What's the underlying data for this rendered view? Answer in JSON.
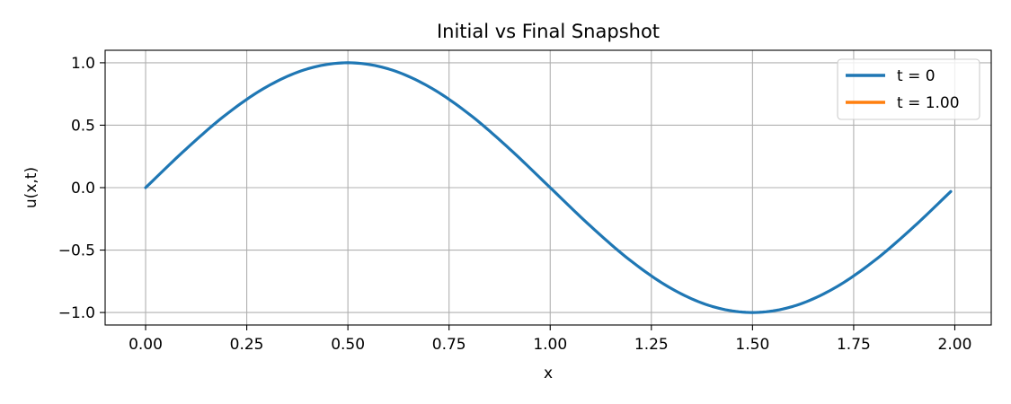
{
  "chart_data": {
    "type": "line",
    "title": "Initial vs Final Snapshot",
    "xlabel": "x",
    "ylabel": "u(x,t)",
    "xlim": [
      -0.1,
      2.09
    ],
    "ylim": [
      -1.1,
      1.1
    ],
    "xticks": [
      0.0,
      0.25,
      0.5,
      0.75,
      1.0,
      1.25,
      1.5,
      1.75,
      2.0
    ],
    "xtick_labels": [
      "0.00",
      "0.25",
      "0.50",
      "0.75",
      "1.00",
      "1.25",
      "1.50",
      "1.75",
      "2.00"
    ],
    "yticks": [
      -1.0,
      -0.5,
      0.0,
      0.5,
      1.0
    ],
    "ytick_labels": [
      "−1.0",
      "−0.5",
      "0.0",
      "0.5",
      "1.0"
    ],
    "grid": true,
    "legend_position": "top-right",
    "series": [
      {
        "name": "t = 0",
        "color": "#1f77b4",
        "x": [
          0.0,
          0.1,
          0.2,
          0.3,
          0.4,
          0.5,
          0.6,
          0.7,
          0.8,
          0.9,
          1.0,
          1.1,
          1.2,
          1.3,
          1.4,
          1.5,
          1.6,
          1.7,
          1.8,
          1.9,
          1.99
        ],
        "y": [
          0.0,
          0.309,
          0.588,
          0.809,
          0.951,
          1.0,
          0.951,
          0.809,
          0.588,
          0.309,
          0.0,
          -0.309,
          -0.588,
          -0.809,
          -0.951,
          -1.0,
          -0.951,
          -0.809,
          -0.588,
          -0.309,
          -0.031
        ]
      },
      {
        "name": "t = 1.00",
        "color": "#ff7f0e",
        "x": [],
        "y": []
      }
    ]
  }
}
